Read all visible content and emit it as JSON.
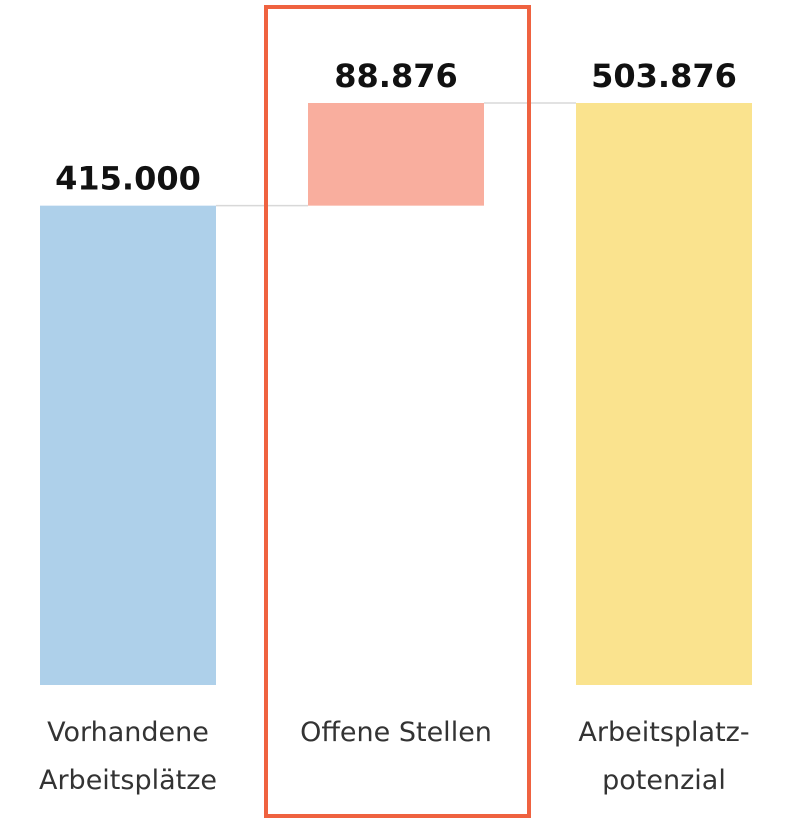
{
  "chart_data": {
    "type": "waterfall",
    "categories": [
      [
        "Vorhandene",
        "Arbeitsplätze"
      ],
      [
        "Offene Stellen"
      ],
      [
        "Arbeitsplatz-",
        "potenzial"
      ]
    ],
    "measure": [
      "absolute",
      "relative",
      "total"
    ],
    "values": [
      415000,
      88876,
      503876
    ],
    "value_labels": [
      "415.000",
      "88.876",
      "503.876"
    ],
    "colors": [
      "#aed0ea",
      "#f9ae9e",
      "#fae38e"
    ]
  }
}
